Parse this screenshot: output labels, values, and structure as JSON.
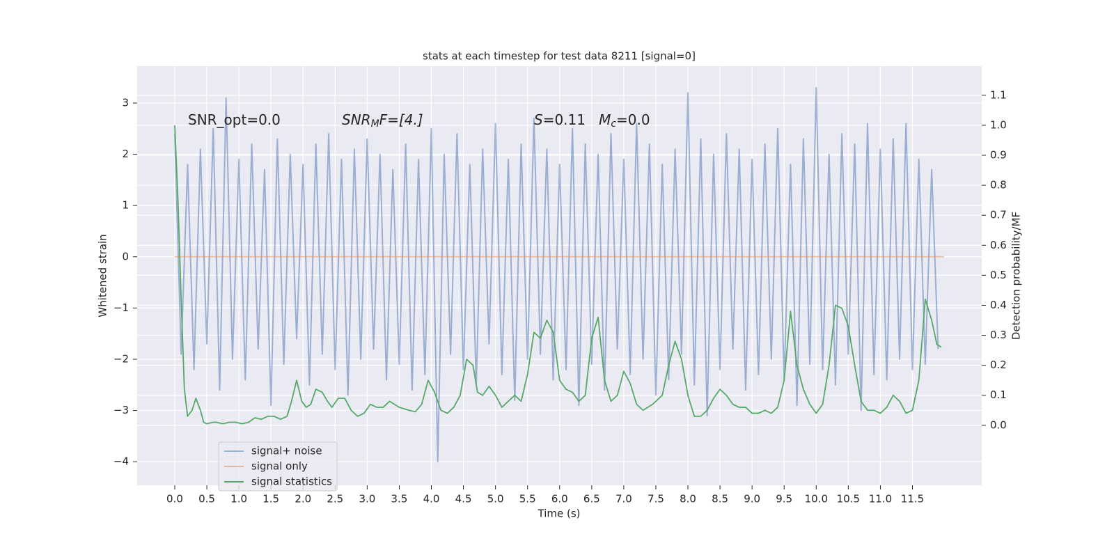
{
  "chart_data": {
    "type": "line",
    "title": "stats at each timestep for test data 8211 [signal=0]",
    "xlabel": "Time (s)",
    "ylabel": "Whitened strain",
    "y2label": "Detection probability/MF",
    "annotations": [
      [
        "SNR_opt=0.0"
      ],
      [
        "SNR",
        "M",
        "F=[4.]"
      ],
      [
        "S",
        "=0.11   ",
        "M",
        "c",
        "=0.0"
      ]
    ],
    "xlim": [
      -0.586,
      12.58
    ],
    "ylim": [
      -4.46,
      3.72
    ],
    "y2lim": [
      -0.2,
      1.197
    ],
    "xticks": [
      {
        "value": 0,
        "label": "0.0"
      },
      0.5,
      {
        "value": 1,
        "label": "1.0"
      },
      1.5,
      {
        "value": 2,
        "label": "2.0"
      },
      2.5,
      {
        "value": 3,
        "label": "3.0"
      },
      3.5,
      {
        "value": 4,
        "label": "4.0"
      },
      4.5,
      {
        "value": 5,
        "label": "5.0"
      },
      5.5,
      {
        "value": 6,
        "label": "6.0"
      },
      6.5,
      {
        "value": 7,
        "label": "7.0"
      },
      7.5,
      {
        "value": 8,
        "label": "8.0"
      },
      8.5,
      {
        "value": 9,
        "label": "9.0"
      },
      9.5,
      {
        "value": 10,
        "label": "10.0"
      },
      10.5,
      {
        "value": 11,
        "label": "11.0"
      },
      11.5
    ],
    "yticks": [
      {
        "value": -4,
        "label": "−4"
      },
      {
        "value": -3,
        "label": "−3"
      },
      {
        "value": -2,
        "label": "−2"
      },
      {
        "value": -1,
        "label": "−1"
      },
      0,
      1,
      2,
      3
    ],
    "y2ticks": [
      {
        "value": 0,
        "label": "0.0"
      },
      0.1,
      0.2,
      0.3,
      0.4,
      0.5,
      0.6,
      0.7,
      0.8,
      0.9,
      {
        "value": 1,
        "label": "1.0"
      },
      1.1
    ],
    "grid": true,
    "legend": "lower left",
    "series": [
      {
        "name": "signal+ noise",
        "color": "#4c72b0",
        "opacity": 0.5,
        "x": [
          0,
          0.1,
          0.2,
          0.3,
          0.4,
          0.5,
          0.6,
          0.7,
          0.8,
          0.9,
          1,
          1.1,
          1.2,
          1.3,
          1.4,
          1.5,
          1.6,
          1.7,
          1.8,
          1.9,
          2,
          2.1,
          2.2,
          2.3,
          2.4,
          2.5,
          2.6,
          2.7,
          2.8,
          2.9,
          3,
          3.1,
          3.2,
          3.3,
          3.4,
          3.5,
          3.6,
          3.7,
          3.8,
          3.9,
          4,
          4.1,
          4.2,
          4.3,
          4.4,
          4.5,
          4.6,
          4.7,
          4.8,
          4.9,
          5,
          5.1,
          5.2,
          5.3,
          5.4,
          5.5,
          5.6,
          5.7,
          5.8,
          5.9,
          6,
          6.1,
          6.2,
          6.3,
          6.4,
          6.5,
          6.6,
          6.7,
          6.8,
          6.9,
          7,
          7.1,
          7.2,
          7.3,
          7.4,
          7.5,
          7.6,
          7.7,
          7.8,
          7.9,
          8,
          8.1,
          8.2,
          8.3,
          8.4,
          8.5,
          8.6,
          8.7,
          8.8,
          8.9,
          9,
          9.1,
          9.2,
          9.3,
          9.4,
          9.5,
          9.6,
          9.7,
          9.8,
          9.9,
          10,
          10.1,
          10.2,
          10.3,
          10.4,
          10.5,
          10.6,
          10.7,
          10.8,
          10.9,
          11,
          11.1,
          11.2,
          11.3,
          11.4,
          11.5,
          11.6,
          11.7,
          11.8,
          11.9
        ],
        "values": [
          2.4,
          -1.9,
          1.8,
          -2.2,
          2.1,
          -1.7,
          2.5,
          -2.6,
          3.1,
          -2.0,
          1.9,
          -2.4,
          2.2,
          -1.8,
          1.7,
          -2.9,
          2.3,
          -2.1,
          2.0,
          -1.6,
          1.8,
          -2.5,
          2.2,
          -1.9,
          2.4,
          -2.2,
          1.9,
          -2.7,
          2.1,
          -2.0,
          2.3,
          -1.8,
          2.0,
          -2.4,
          1.7,
          -2.1,
          2.2,
          -2.6,
          1.9,
          -2.3,
          2.5,
          -4.0,
          2.0,
          -1.9,
          2.4,
          -2.2,
          1.8,
          -2.5,
          2.1,
          -1.7,
          2.6,
          -2.3,
          1.9,
          -2.8,
          2.2,
          -2.0,
          2.7,
          -1.9,
          2.1,
          -2.4,
          1.8,
          -2.2,
          2.5,
          -2.9,
          2.2,
          -2.1,
          2.0,
          -2.6,
          2.4,
          -1.8,
          1.9,
          -2.3,
          2.6,
          -2.0,
          2.2,
          -2.7,
          1.8,
          -2.4,
          2.1,
          -1.9,
          3.2,
          -2.5,
          2.3,
          -3.1,
          2.0,
          -2.2,
          2.4,
          -1.8,
          2.1,
          -2.6,
          1.9,
          -2.3,
          2.2,
          -2.0,
          2.5,
          -2.4,
          1.8,
          -2.9,
          2.3,
          -2.1,
          3.3,
          -2.2,
          2.0,
          -2.5,
          2.4,
          -1.9,
          2.2,
          -3.0,
          2.6,
          -2.3,
          2.1,
          -2.4,
          2.3,
          -2.0,
          2.6,
          -2.2,
          1.9,
          -2.1,
          1.7,
          -1.8
        ]
      },
      {
        "name": "signal only",
        "color": "#dd8452",
        "opacity": 0.5,
        "x": [
          0,
          11.99
        ],
        "values": [
          0,
          0
        ]
      },
      {
        "name": "signal statistics",
        "color": "#55a868",
        "opacity": 1,
        "axis": "y2",
        "x": [
          0,
          0.05,
          0.1,
          0.15,
          0.2,
          0.27,
          0.33,
          0.4,
          0.45,
          0.5,
          0.6,
          0.65,
          0.75,
          0.85,
          0.95,
          1.05,
          1.15,
          1.25,
          1.35,
          1.45,
          1.55,
          1.65,
          1.75,
          1.82,
          1.9,
          1.98,
          2.05,
          2.12,
          2.2,
          2.3,
          2.38,
          2.45,
          2.55,
          2.65,
          2.75,
          2.85,
          2.95,
          3.05,
          3.15,
          3.25,
          3.35,
          3.5,
          3.65,
          3.75,
          3.85,
          3.95,
          4.05,
          4.15,
          4.25,
          4.35,
          4.45,
          4.55,
          4.65,
          4.72,
          4.8,
          4.9,
          5,
          5.1,
          5.2,
          5.3,
          5.4,
          5.5,
          5.6,
          5.7,
          5.8,
          5.9,
          6,
          6.1,
          6.2,
          6.3,
          6.4,
          6.5,
          6.6,
          6.7,
          6.8,
          6.9,
          7,
          7.1,
          7.2,
          7.3,
          7.45,
          7.6,
          7.7,
          7.8,
          7.9,
          8,
          8.1,
          8.2,
          8.3,
          8.4,
          8.5,
          8.6,
          8.7,
          8.8,
          8.9,
          9,
          9.1,
          9.2,
          9.3,
          9.4,
          9.5,
          9.6,
          9.7,
          9.8,
          9.9,
          10,
          10.1,
          10.2,
          10.3,
          10.4,
          10.5,
          10.6,
          10.7,
          10.8,
          10.9,
          11,
          11.1,
          11.2,
          11.3,
          11.4,
          11.5,
          11.6,
          11.7,
          11.8,
          11.88,
          11.95
        ],
        "values": [
          1.0,
          0.75,
          0.42,
          0.12,
          0.03,
          0.05,
          0.09,
          0.05,
          0.01,
          0.005,
          0.01,
          0.01,
          0.005,
          0.01,
          0.01,
          0.005,
          0.01,
          0.025,
          0.02,
          0.03,
          0.03,
          0.02,
          0.03,
          0.08,
          0.15,
          0.08,
          0.06,
          0.07,
          0.12,
          0.11,
          0.08,
          0.06,
          0.09,
          0.09,
          0.05,
          0.03,
          0.04,
          0.07,
          0.06,
          0.06,
          0.08,
          0.06,
          0.05,
          0.045,
          0.07,
          0.15,
          0.11,
          0.05,
          0.04,
          0.06,
          0.1,
          0.22,
          0.2,
          0.11,
          0.1,
          0.13,
          0.1,
          0.06,
          0.08,
          0.1,
          0.08,
          0.17,
          0.31,
          0.29,
          0.35,
          0.31,
          0.15,
          0.12,
          0.11,
          0.08,
          0.1,
          0.29,
          0.36,
          0.15,
          0.08,
          0.1,
          0.18,
          0.14,
          0.07,
          0.05,
          0.07,
          0.1,
          0.2,
          0.28,
          0.22,
          0.1,
          0.03,
          0.03,
          0.05,
          0.09,
          0.12,
          0.1,
          0.07,
          0.06,
          0.06,
          0.04,
          0.04,
          0.05,
          0.04,
          0.06,
          0.15,
          0.38,
          0.2,
          0.12,
          0.07,
          0.04,
          0.07,
          0.2,
          0.4,
          0.39,
          0.33,
          0.2,
          0.08,
          0.05,
          0.05,
          0.04,
          0.06,
          0.1,
          0.08,
          0.04,
          0.05,
          0.15,
          0.42,
          0.35,
          0.27,
          0.26
        ]
      }
    ]
  }
}
